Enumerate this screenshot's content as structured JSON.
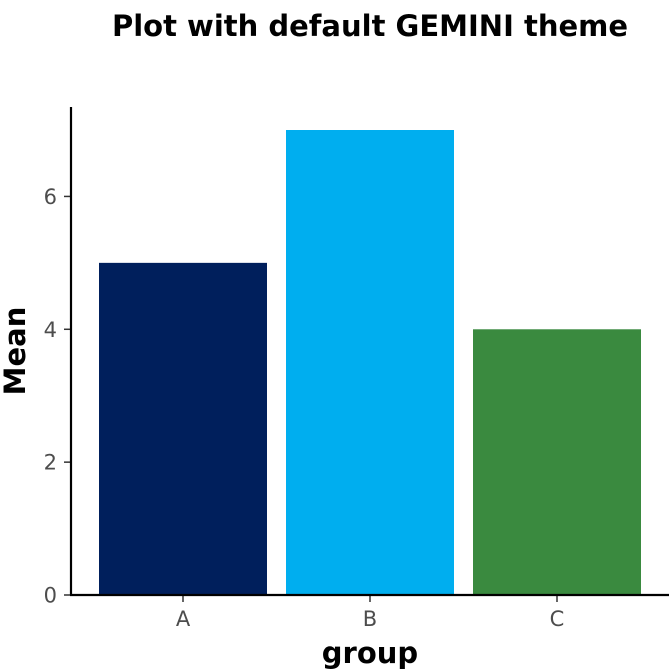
{
  "chart_data": {
    "type": "bar",
    "title": "Plot with default GEMINI theme",
    "xlabel": "group",
    "ylabel": "Mean",
    "categories": [
      "A",
      "B",
      "C"
    ],
    "values": [
      5,
      7,
      4
    ],
    "colors": [
      "#001f5c",
      "#00aeef",
      "#3a8a3f"
    ],
    "ylim": [
      0,
      7
    ],
    "yticks": [
      0,
      2,
      4,
      6
    ],
    "grid": false,
    "legend": "none"
  }
}
